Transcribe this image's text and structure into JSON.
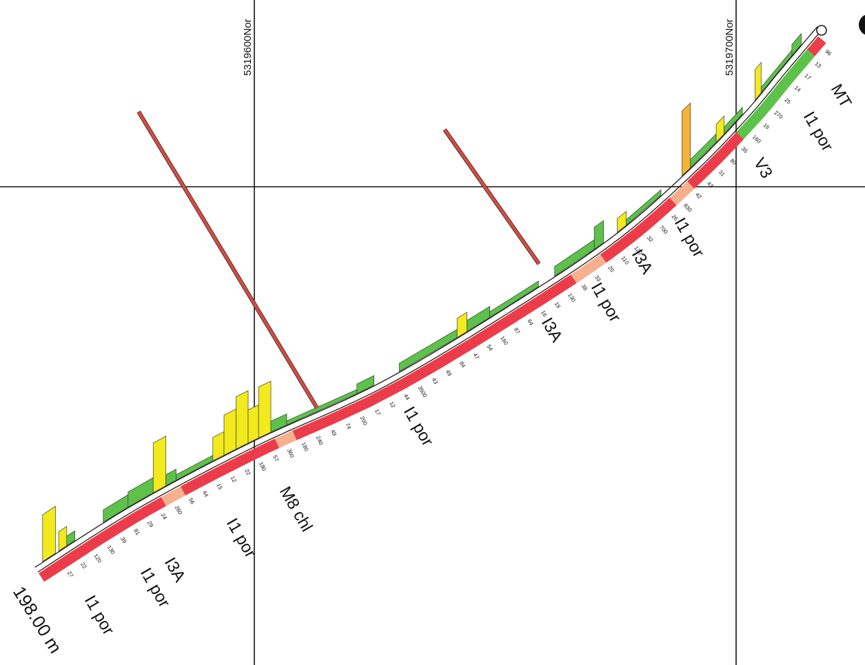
{
  "section": {
    "grid_labels": [
      "5319600Nor",
      "5319700Nor"
    ],
    "depth_label": "198.00 m",
    "lithology_labels": [
      "MT",
      "I1 por",
      "V3",
      "I1 por",
      "I3A",
      "I1 por",
      "I3A",
      "I1 por",
      "M8 chl",
      "I1 por",
      "I3A",
      "I1 por",
      "I1 por"
    ],
    "assay_values": [
      "96",
      "13",
      "17",
      "14",
      "25",
      "270",
      "16",
      "160",
      "35",
      "80",
      "31",
      "43",
      "42",
      "830",
      "26",
      "700",
      "32",
      "120",
      "110",
      "20",
      "33",
      "38",
      "130",
      "19",
      "16",
      "64",
      "87",
      "160",
      "54",
      "47",
      "84",
      "49",
      "43",
      "3500",
      "44",
      "12",
      "17",
      "200",
      "74",
      "49",
      "240",
      "180",
      "360",
      "57",
      "180",
      "22",
      "12",
      "15",
      "44",
      "56",
      "260",
      "24",
      "29",
      "81",
      "39",
      "130",
      "120",
      "22",
      "27"
    ],
    "colors": {
      "hole_trace": "#1a1a1a",
      "interval_red": "#ec3c4a",
      "interval_peach": "#f6b08e",
      "interval_green": "#5cc24a",
      "histogram_green": "#5cc24a",
      "histogram_yellow": "#f2ea1c",
      "histogram_orange": "#f5b435",
      "intercept_red": "#e0483c",
      "outline": "#3a3a3a"
    }
  }
}
